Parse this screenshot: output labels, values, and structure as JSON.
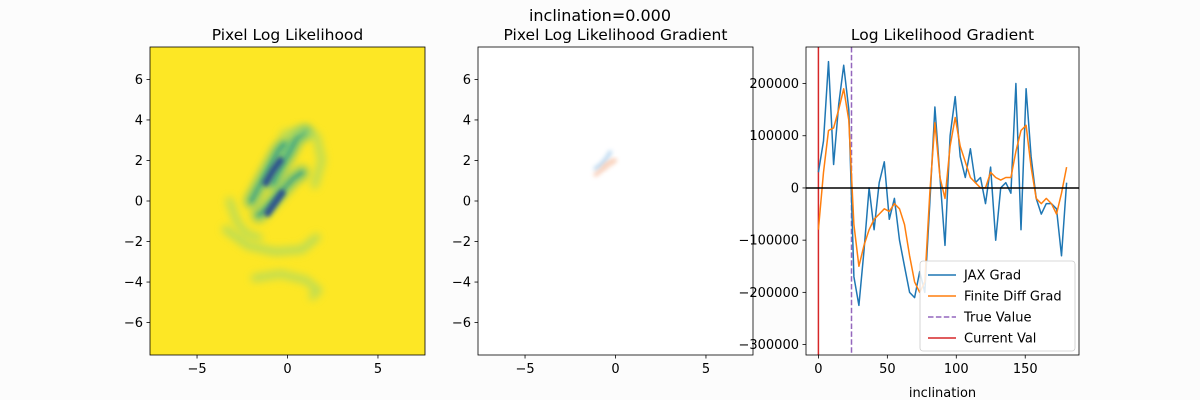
{
  "suptitle": "inclination=0.000",
  "chart_data": [
    {
      "type": "heatmap",
      "title": "Pixel Log Likelihood",
      "xlabel": "",
      "ylabel": "",
      "xlim": [
        -7.6,
        7.6
      ],
      "ylim": [
        -7.6,
        7.6
      ],
      "xticks": [
        -5,
        0,
        5
      ],
      "yticks": [
        -6,
        -4,
        -2,
        0,
        2,
        4,
        6
      ],
      "background_color": "#fde725",
      "colormap": "viridis",
      "features": [
        {
          "kind": "band",
          "points": [
            [
              -0.8,
              0.9
            ],
            [
              -0.6,
              1.3
            ],
            [
              -0.3,
              1.8
            ],
            [
              0.1,
              2.4
            ],
            [
              0.5,
              3.1
            ],
            [
              1.0,
              3.4
            ]
          ],
          "intensity": 0.75
        },
        {
          "kind": "band",
          "points": [
            [
              -2.0,
              0.0
            ],
            [
              -1.7,
              0.5
            ],
            [
              -1.4,
              1.0
            ],
            [
              -1.1,
              1.5
            ],
            [
              -0.8,
              2.0
            ],
            [
              -0.5,
              2.5
            ],
            [
              -0.2,
              2.8
            ]
          ],
          "intensity": 0.7
        },
        {
          "kind": "band",
          "points": [
            [
              -1.6,
              -0.7
            ],
            [
              -1.3,
              -0.5
            ],
            [
              -1.0,
              -0.2
            ],
            [
              -0.6,
              0.2
            ],
            [
              -0.2,
              0.6
            ],
            [
              0.3,
              1.1
            ],
            [
              0.8,
              1.4
            ]
          ],
          "intensity": 0.65
        },
        {
          "kind": "core",
          "points": [
            [
              -1.2,
              0.9
            ],
            [
              -0.8,
              1.5
            ],
            [
              -0.4,
              2.0
            ]
          ],
          "intensity": 1.0
        },
        {
          "kind": "core",
          "points": [
            [
              -1.1,
              -0.6
            ],
            [
              -0.7,
              -0.1
            ],
            [
              -0.3,
              0.4
            ]
          ],
          "intensity": 1.0
        },
        {
          "kind": "arc",
          "points": [
            [
              -3.4,
              -1.4
            ],
            [
              -2.2,
              -2.2
            ],
            [
              -0.7,
              -2.5
            ],
            [
              0.8,
              -2.4
            ],
            [
              1.6,
              -1.8
            ]
          ],
          "intensity": 0.35
        },
        {
          "kind": "arc",
          "points": [
            [
              -3.2,
              0.0
            ],
            [
              -2.8,
              -1.0
            ],
            [
              -2.3,
              -1.6
            ],
            [
              -1.6,
              -1.8
            ]
          ],
          "intensity": 0.3
        },
        {
          "kind": "arc",
          "points": [
            [
              -0.2,
              3.3
            ],
            [
              0.8,
              3.5
            ],
            [
              1.6,
              3.2
            ],
            [
              1.9,
              2.0
            ],
            [
              1.5,
              0.8
            ]
          ],
          "intensity": 0.3
        },
        {
          "kind": "arc",
          "points": [
            [
              -1.8,
              -3.8
            ],
            [
              -0.4,
              -3.6
            ],
            [
              1.0,
              -3.9
            ],
            [
              1.7,
              -4.4
            ],
            [
              1.4,
              -4.7
            ]
          ],
          "intensity": 0.3
        }
      ]
    },
    {
      "type": "heatmap",
      "title": "Pixel Log Likelihood Gradient",
      "xlabel": "",
      "ylabel": "",
      "xlim": [
        -7.6,
        7.6
      ],
      "ylim": [
        -7.6,
        7.6
      ],
      "xticks": [
        -5,
        0,
        5
      ],
      "yticks": [
        -6,
        -4,
        -2,
        0,
        2,
        4,
        6
      ],
      "background_color": "#ffffff",
      "colormap": "diverging",
      "features": [
        {
          "kind": "band",
          "sign": "positive",
          "color": "#9ec7ea",
          "points": [
            [
              -1.1,
              1.6
            ],
            [
              -0.8,
              1.8
            ],
            [
              -0.5,
              2.1
            ],
            [
              -0.3,
              2.4
            ]
          ],
          "intensity": 0.7
        },
        {
          "kind": "band",
          "sign": "negative",
          "color": "#f6b898",
          "points": [
            [
              -1.1,
              1.3
            ],
            [
              -0.8,
              1.5
            ],
            [
              -0.5,
              1.8
            ],
            [
              -0.1,
              2.0
            ]
          ],
          "intensity": 0.7
        },
        {
          "kind": "band",
          "sign": "negative",
          "color": "#f8cdb4",
          "points": [
            [
              -0.6,
              1.6
            ],
            [
              -0.3,
              1.8
            ],
            [
              0.0,
              2.0
            ]
          ],
          "intensity": 0.5
        }
      ]
    },
    {
      "type": "line",
      "title": "Log Likelihood Gradient",
      "xlabel": "inclination",
      "ylabel": "",
      "xlim": [
        -9,
        189
      ],
      "ylim": [
        -320000,
        270000
      ],
      "xticks": [
        0,
        50,
        100,
        150
      ],
      "yticks": [
        -300000,
        -200000,
        -100000,
        0,
        100000,
        200000
      ],
      "ytick_labels": [
        "−300000",
        "−200000",
        "−100000",
        "0",
        "100000",
        "200000"
      ],
      "grid": false,
      "legend_position": "lower-right",
      "x": [
        0,
        3.67,
        7.35,
        11.02,
        14.69,
        18.37,
        22.04,
        25.71,
        29.39,
        33.06,
        36.73,
        40.41,
        44.08,
        47.76,
        51.43,
        55.1,
        58.78,
        62.45,
        66.12,
        69.8,
        73.47,
        77.14,
        80.82,
        84.49,
        88.16,
        91.84,
        95.51,
        99.18,
        102.86,
        106.53,
        110.2,
        113.88,
        117.55,
        121.22,
        124.9,
        128.57,
        132.24,
        135.92,
        139.59,
        143.27,
        146.94,
        150.61,
        154.29,
        157.96,
        161.63,
        165.31,
        168.98,
        172.65,
        176.33,
        180
      ],
      "series": [
        {
          "name": "JAX Grad",
          "color": "#1f77b4",
          "values": [
            30000,
            90000,
            242000,
            45000,
            160000,
            235000,
            150000,
            -170000,
            -225000,
            -120000,
            0,
            -80000,
            10000,
            50000,
            -60000,
            -20000,
            -100000,
            -150000,
            -200000,
            -210000,
            -160000,
            -200000,
            -30000,
            155000,
            20000,
            -110000,
            100000,
            175000,
            60000,
            20000,
            75000,
            10000,
            20000,
            -30000,
            40000,
            -100000,
            0,
            10000,
            -10000,
            200000,
            -80000,
            190000,
            60000,
            -20000,
            -50000,
            -30000,
            -30000,
            -40000,
            -130000,
            10000
          ]
        },
        {
          "name": "Finite Diff Grad",
          "color": "#ff7f0e",
          "values": [
            -80000,
            30000,
            110000,
            115000,
            150000,
            190000,
            130000,
            -70000,
            -150000,
            -110000,
            -80000,
            -60000,
            -50000,
            -40000,
            -45000,
            -30000,
            -40000,
            -70000,
            -130000,
            -180000,
            -200000,
            -180000,
            -10000,
            125000,
            20000,
            -20000,
            80000,
            135000,
            80000,
            50000,
            20000,
            10000,
            0,
            0,
            30000,
            20000,
            15000,
            20000,
            20000,
            70000,
            110000,
            120000,
            40000,
            -20000,
            -30000,
            -20000,
            -30000,
            -50000,
            -10000,
            40000
          ]
        }
      ],
      "hlines": [
        {
          "y": 0,
          "color": "#000000"
        }
      ],
      "vlines": [
        {
          "name": "True Value",
          "x": 24,
          "color": "#9467bd",
          "style": "dashed"
        },
        {
          "name": "Current Val",
          "x": 0,
          "color": "#d62728",
          "style": "solid"
        }
      ],
      "legend": [
        {
          "label": "JAX Grad",
          "color": "#1f77b4",
          "style": "solid"
        },
        {
          "label": "Finite Diff Grad",
          "color": "#ff7f0e",
          "style": "solid"
        },
        {
          "label": "True Value",
          "color": "#9467bd",
          "style": "dashed"
        },
        {
          "label": "Current Val",
          "color": "#d62728",
          "style": "solid"
        }
      ]
    }
  ]
}
